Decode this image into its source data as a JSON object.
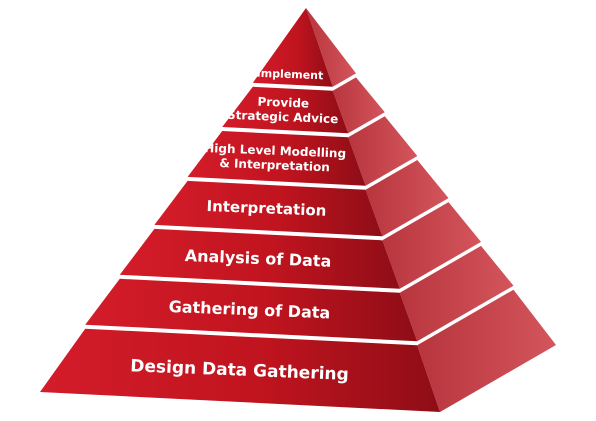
{
  "diagram": {
    "type": "pyramid",
    "colors": {
      "front_light": "#d41c2a",
      "front_dark": "#8f0d16",
      "side_light": "#d4555c",
      "side_dark": "#b8353d",
      "gap": "#c7c3c3"
    },
    "levels": [
      {
        "lines": [
          "Implement"
        ]
      },
      {
        "lines": [
          "Provide",
          "Strategic Advice"
        ]
      },
      {
        "lines": [
          "High Level Modelling",
          "& Interpretation"
        ]
      },
      {
        "lines": [
          "Interpretation"
        ]
      },
      {
        "lines": [
          "Analysis of Data"
        ]
      },
      {
        "lines": [
          "Gathering of Data"
        ]
      },
      {
        "lines": [
          "Design Data Gathering"
        ]
      }
    ]
  }
}
